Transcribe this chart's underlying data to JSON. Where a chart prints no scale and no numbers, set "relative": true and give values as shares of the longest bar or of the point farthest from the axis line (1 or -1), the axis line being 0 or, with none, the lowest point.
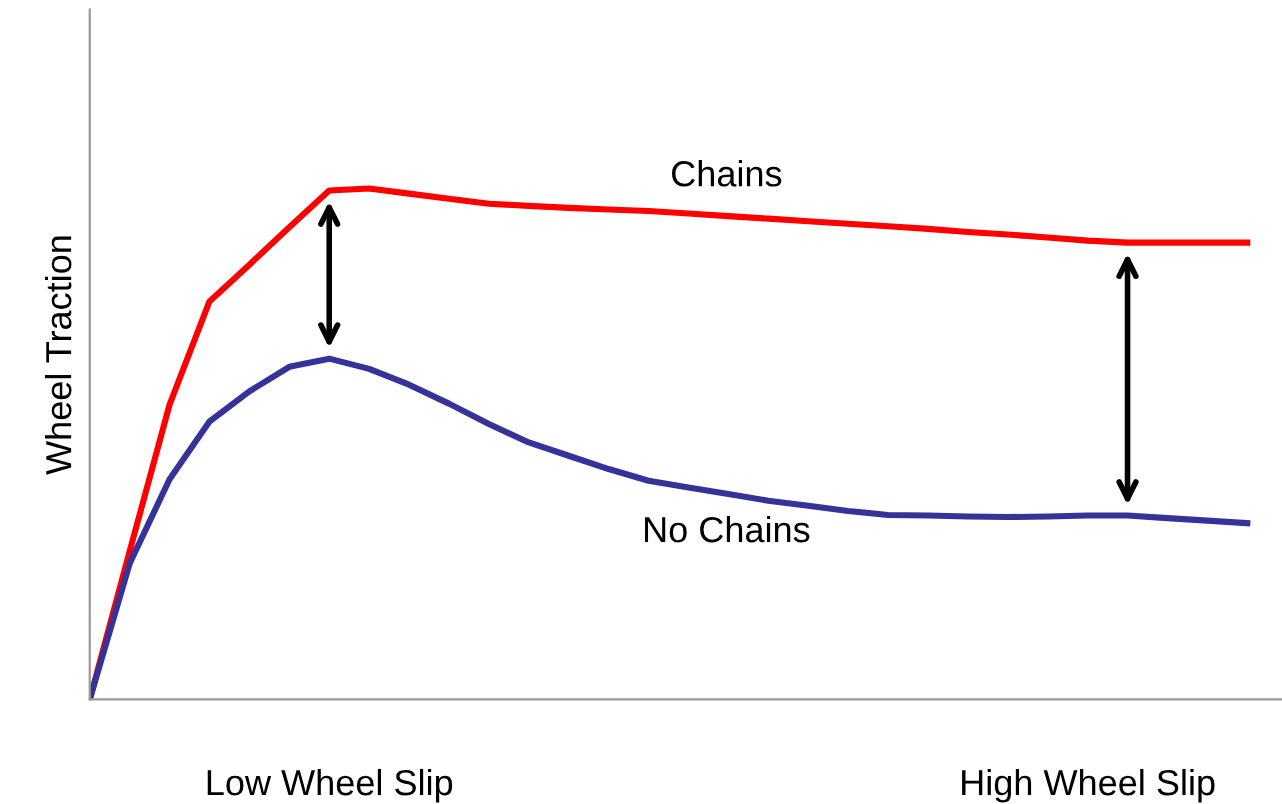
{
  "chart_data": {
    "type": "line",
    "relative": true,
    "ylabel": "Wheel Traction",
    "categories": [
      null,
      null,
      null,
      null,
      null,
      null,
      "Low Wheel Slip",
      null,
      null,
      null,
      null,
      null,
      null,
      null,
      null,
      null,
      null,
      null,
      null,
      null,
      null,
      null,
      null,
      null,
      null,
      "High Wheel Slip",
      null,
      null,
      null,
      null
    ],
    "grid": false,
    "legend": false,
    "marker": "none",
    "line_style": "solid",
    "series": [
      {
        "name": "Chains",
        "color": "#ff0000",
        "values": [
          0,
          0.29,
          0.577,
          0.779,
          0.851,
          0.924,
          0.996,
          1,
          0.99,
          0.98,
          0.97,
          0.966,
          0.962,
          0.959,
          0.956,
          0.951,
          0.946,
          0.941,
          0.936,
          0.931,
          0.926,
          0.921,
          0.915,
          0.91,
          0.904,
          0.898,
          0.894,
          0.894,
          0.894,
          0.894
        ]
      },
      {
        "name": "No Chains",
        "color": "#333399",
        "values": [
          0,
          0.266,
          0.431,
          0.544,
          0.603,
          0.651,
          0.667,
          0.647,
          0.616,
          0.579,
          0.539,
          0.503,
          0.477,
          0.451,
          0.428,
          0.415,
          0.402,
          0.389,
          0.379,
          0.369,
          0.361,
          0.36,
          0.358,
          0.357,
          0.358,
          0.36,
          0.36,
          0.355,
          0.35,
          0.345
        ]
      }
    ]
  }
}
